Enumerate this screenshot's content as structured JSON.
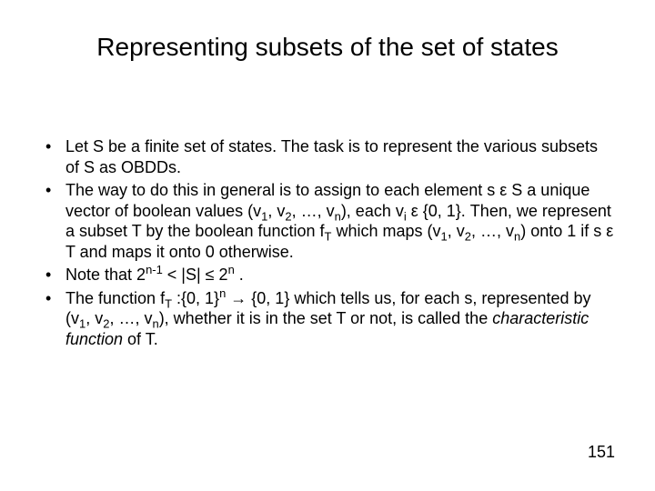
{
  "title": "Representing subsets of the set of states",
  "bullets": {
    "b1": {
      "p1": "Let S be a finite set of states. The task is to represent the various subsets of S as OBDDs."
    },
    "b2": {
      "p1": "The way to do this in general is to assign to each element s ε S a unique vector of boolean values (v",
      "sub1": "1",
      "p2": ", v",
      "sub2": "2",
      "p3": ", …, v",
      "sub3": "n",
      "p4": "), each v",
      "sub4": "i",
      "p5": " ε {0, 1}. Then, we represent a subset T by the boolean function f",
      "sub5": "T",
      "p6": " which maps (v",
      "sub6": "1",
      "p7": ", v",
      "sub7": "2",
      "p8": ", …, v",
      "sub8": "n",
      "p9": ") onto 1 if s ε T and maps it onto 0 otherwise."
    },
    "b3": {
      "p1": "Note that 2",
      "sup1": "n-1",
      "p2": " < |S| ≤ 2",
      "sup2": "n",
      "p3": " ."
    },
    "b4": {
      "p1": "The function f",
      "sub1": "T",
      "p2": " :{0, 1}",
      "sup1": "n",
      "p3": " → {0, 1} which tells us, for each s, represented by (v",
      "sub2": "1",
      "p4": ", v",
      "sub3": "2",
      "p5": ", …, v",
      "sub4": "n",
      "p6": "), whether it is in the set T or not, is called the ",
      "em": "characteristic function",
      "p7": " of T."
    }
  },
  "page_number": "151",
  "colors": {
    "background": "#ffffff",
    "text": "#000000"
  },
  "typography": {
    "title_fontsize_pt": 28,
    "body_fontsize_pt": 18,
    "font_family": "Arial"
  }
}
